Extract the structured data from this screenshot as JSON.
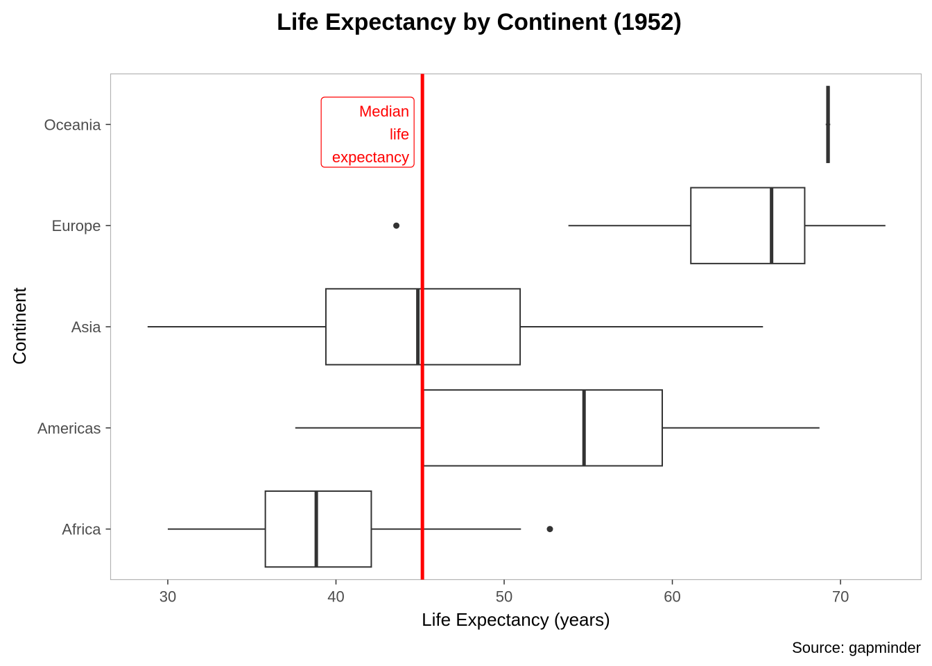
{
  "chart_data": {
    "type": "boxplot",
    "orientation": "horizontal",
    "title": "Life Expectancy by Continent (1952)",
    "xlabel": "Life Expectancy (years)",
    "ylabel": "Continent",
    "caption": "Source: gapminder",
    "xlim": [
      26.6,
      74.8
    ],
    "xticks": [
      30,
      40,
      50,
      60,
      70
    ],
    "grid": false,
    "categories": [
      "Africa",
      "Americas",
      "Asia",
      "Europe",
      "Oceania"
    ],
    "boxes": [
      {
        "category": "Africa",
        "whisker_low": 30.0,
        "q1": 35.8,
        "median": 38.83,
        "q3": 42.1,
        "whisker_high": 51.0,
        "outliers": [
          52.72
        ]
      },
      {
        "category": "Americas",
        "whisker_low": 37.58,
        "q1": 45.2,
        "median": 54.75,
        "q3": 59.4,
        "whisker_high": 68.75,
        "outliers": []
      },
      {
        "category": "Asia",
        "whisker_low": 28.8,
        "q1": 39.4,
        "median": 44.87,
        "q3": 50.95,
        "whisker_high": 65.39,
        "outliers": []
      },
      {
        "category": "Europe",
        "whisker_low": 53.82,
        "q1": 61.1,
        "median": 65.9,
        "q3": 67.87,
        "whisker_high": 72.67,
        "outliers": [
          43.59
        ]
      },
      {
        "category": "Oceania",
        "whisker_low": 69.12,
        "q1": 69.19,
        "median": 69.26,
        "q3": 69.32,
        "whisker_high": 69.39,
        "outliers": []
      }
    ],
    "reference_line": {
      "x": 45.14,
      "color": "#ff0000"
    },
    "annotation": {
      "lines": [
        "Median",
        "life",
        "expectancy"
      ],
      "color": "#ff0000"
    },
    "colors": {
      "box": "#333333",
      "panel_border": "#b3b3b3"
    }
  }
}
